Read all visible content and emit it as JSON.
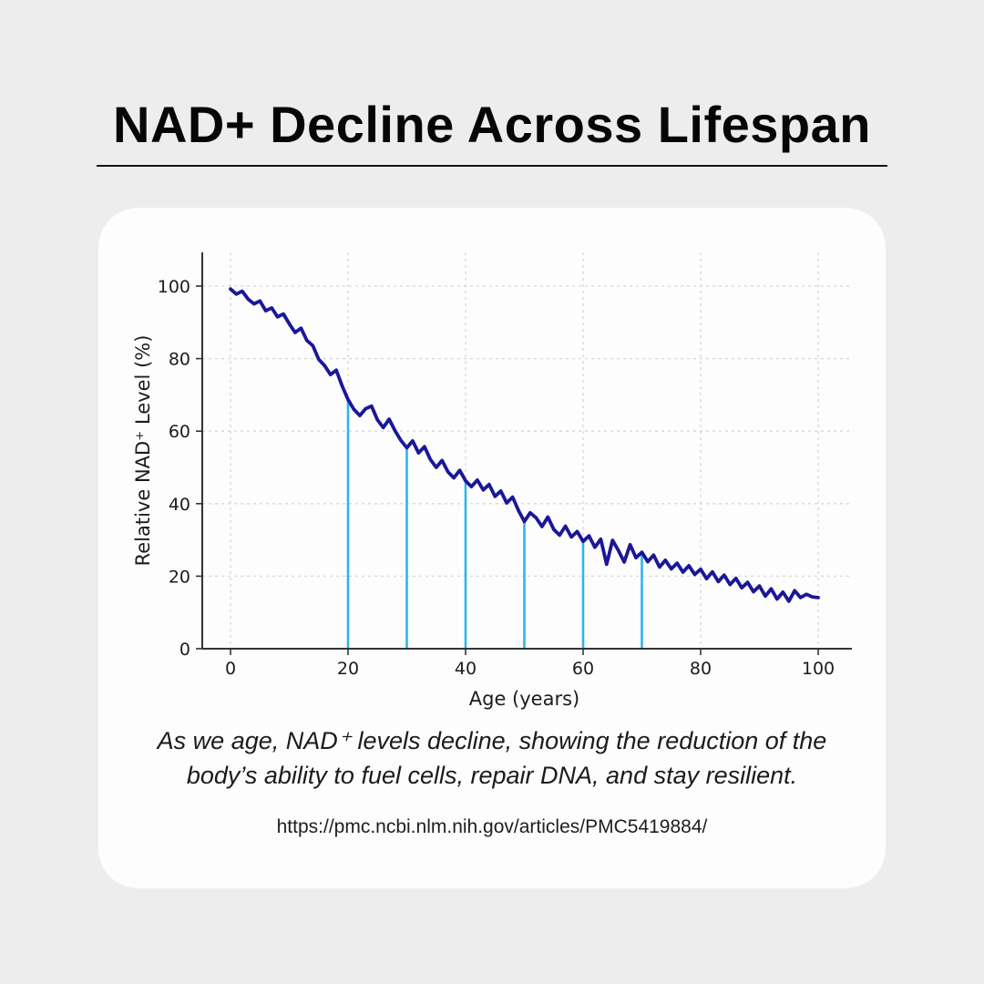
{
  "page": {
    "title": "NAD+ Decline Across Lifespan",
    "caption_lines": [
      "As we age, NAD⁺ levels decline, showing the reduction of the",
      "body’s ability to fuel cells, repair DNA, and stay resilient."
    ],
    "source_url": "https://pmc.ncbi.nlm.nih.gov/articles/PMC5419884/"
  },
  "colors": {
    "background": "#ededed",
    "card": "#fdfdfd",
    "title_text": "#060606",
    "curve": "#1a1798",
    "marker_line": "#30b4ef",
    "grid": "#d7d7d7",
    "axis": "#333333",
    "tick_text": "#1c1c1c"
  },
  "chart_data": {
    "type": "line",
    "title": "",
    "xlabel": "Age (years)",
    "ylabel": "Relative NAD⁺ Level (%)",
    "xlim": [
      0,
      100
    ],
    "ylim": [
      0,
      110
    ],
    "xticks": [
      0,
      20,
      40,
      60,
      80,
      100
    ],
    "yticks": [
      0,
      20,
      40,
      60,
      80,
      100
    ],
    "grid": true,
    "grid_style": "dashed",
    "legend": "none",
    "series": [
      {
        "name": "Relative NAD+ level (%)",
        "x": [
          0,
          1,
          2,
          3,
          4,
          5,
          6,
          7,
          8,
          9,
          10,
          11,
          12,
          13,
          14,
          15,
          16,
          17,
          18,
          19,
          20,
          21,
          22,
          23,
          24,
          25,
          26,
          27,
          28,
          29,
          30,
          31,
          32,
          33,
          34,
          35,
          36,
          37,
          38,
          39,
          40,
          41,
          42,
          43,
          44,
          45,
          46,
          47,
          48,
          49,
          50,
          51,
          52,
          53,
          54,
          55,
          56,
          57,
          58,
          59,
          60,
          61,
          62,
          63,
          64,
          65,
          66,
          67,
          68,
          69,
          70,
          71,
          72,
          73,
          74,
          75,
          76,
          77,
          78,
          79,
          80,
          81,
          82,
          83,
          84,
          85,
          86,
          87,
          88,
          89,
          90,
          91,
          92,
          93,
          94,
          95,
          96,
          97,
          98,
          99,
          100
        ],
        "values": [
          99.2,
          97.8,
          98.6,
          96.4,
          95.1,
          95.9,
          93.2,
          94.0,
          91.5,
          92.3,
          89.6,
          87.2,
          88.4,
          85.0,
          83.6,
          79.8,
          78.1,
          75.6,
          76.8,
          72.4,
          68.7,
          66.0,
          64.3,
          66.2,
          66.9,
          63.1,
          61.0,
          63.3,
          60.1,
          57.4,
          55.4,
          57.3,
          54.0,
          55.7,
          52.2,
          50.0,
          51.9,
          48.8,
          47.1,
          49.2,
          46.3,
          44.7,
          46.5,
          43.8,
          45.3,
          42.0,
          43.5,
          40.2,
          41.8,
          38.1,
          35.1,
          37.5,
          36.1,
          33.7,
          36.3,
          32.9,
          31.3,
          33.8,
          30.8,
          32.3,
          29.6,
          31.1,
          28.0,
          30.2,
          23.3,
          29.9,
          27.1,
          23.9,
          28.7,
          25.1,
          26.6,
          24.0,
          25.8,
          22.5,
          24.4,
          22.0,
          23.6,
          21.1,
          22.9,
          20.5,
          21.9,
          19.3,
          21.2,
          18.5,
          20.3,
          17.7,
          19.4,
          16.8,
          18.3,
          15.7,
          17.3,
          14.5,
          16.5,
          13.7,
          15.6,
          13.1,
          16.0,
          14.1,
          15.0,
          14.3,
          14.1
        ]
      }
    ],
    "marker_drop_lines": {
      "x": [
        20,
        30,
        40,
        50,
        60,
        70
      ],
      "tops": [
        68.7,
        55.4,
        46.3,
        35.1,
        29.6,
        26.6
      ],
      "baseline": 0
    }
  }
}
